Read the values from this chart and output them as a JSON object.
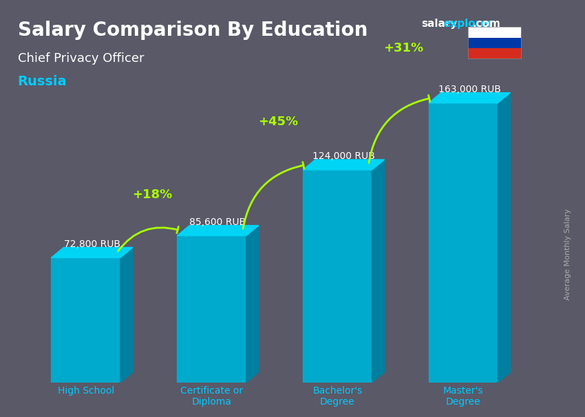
{
  "title_salary": "Salary Comparison By Education",
  "subtitle_role": "Chief Privacy Officer",
  "subtitle_country": "Russia",
  "watermark": "salaryexplorer.com",
  "ylabel": "Average Monthly Salary",
  "categories": [
    "High School",
    "Certificate or\nDiploma",
    "Bachelor's\nDegree",
    "Master's\nDegree"
  ],
  "values": [
    72800,
    85600,
    124000,
    163000
  ],
  "value_labels": [
    "72,800 RUB",
    "85,600 RUB",
    "124,000 RUB",
    "163,000 RUB"
  ],
  "pct_labels": [
    "+18%",
    "+45%",
    "+31%"
  ],
  "bar_color_top": "#00d4f5",
  "bar_color_mid": "#00aacc",
  "bar_color_side": "#007fa0",
  "bg_color": "#1a1a2e",
  "title_color": "#ffffff",
  "subtitle_role_color": "#ffffff",
  "subtitle_country_color": "#00ccff",
  "value_label_color": "#ffffff",
  "pct_label_color": "#aaff00",
  "arrow_color": "#aaff00",
  "xlabel_color": "#00ccff",
  "watermark_salary_color": "#cccccc",
  "watermark_explorer_color": "#00ccff",
  "flag_colors": [
    "#ffffff",
    "#0039a6",
    "#d52b1e"
  ],
  "ylim": [
    0,
    200000
  ],
  "bar_width": 0.55
}
